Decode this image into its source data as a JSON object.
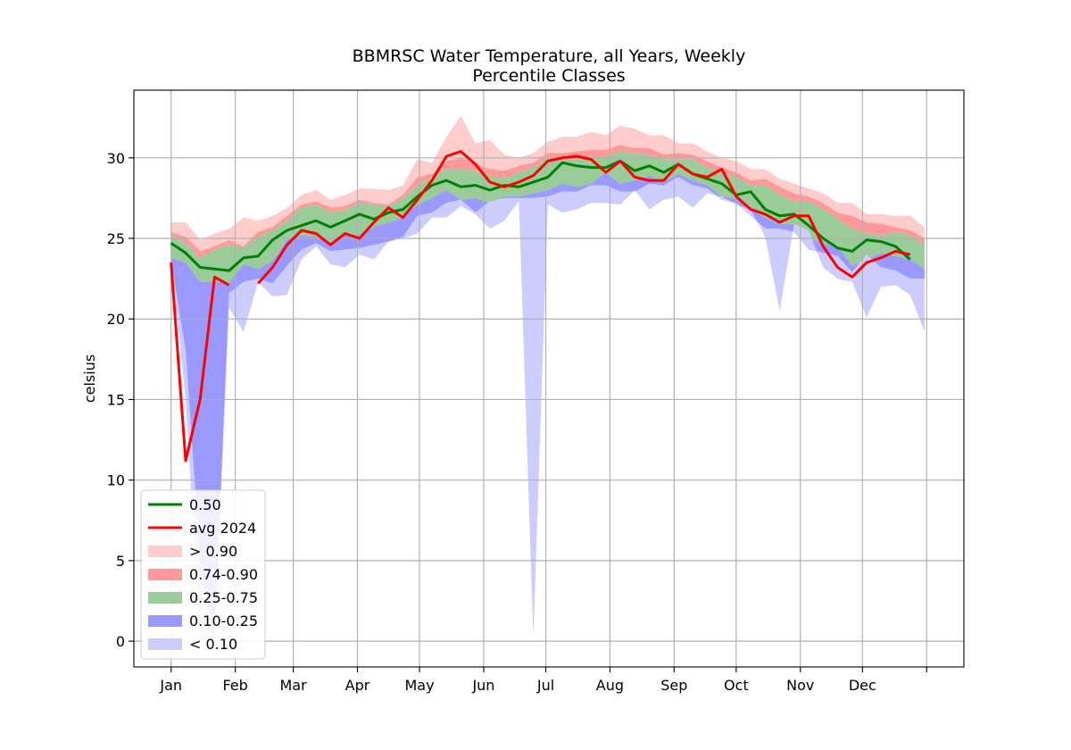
{
  "chart_data": {
    "type": "area",
    "title_line1": "BBMRSC Water Temperature, all Years, Weekly",
    "title_line2": "Percentile Classes",
    "xlabel": "",
    "ylabel": "celsius",
    "x_start": 1,
    "x_step": 7,
    "x_ticks": [
      {
        "day": 1,
        "label": "Jan"
      },
      {
        "day": 32,
        "label": "Feb"
      },
      {
        "day": 60,
        "label": "Mar"
      },
      {
        "day": 91,
        "label": "Apr"
      },
      {
        "day": 121,
        "label": "May"
      },
      {
        "day": 152,
        "label": "Jun"
      },
      {
        "day": 182,
        "label": "Jul"
      },
      {
        "day": 213,
        "label": "Aug"
      },
      {
        "day": 244,
        "label": "Sep"
      },
      {
        "day": 274,
        "label": "Oct"
      },
      {
        "day": 305,
        "label": "Nov"
      },
      {
        "day": 335,
        "label": "Dec"
      },
      {
        "day": 366,
        "label": ""
      }
    ],
    "xlim": [
      -17,
      384
    ],
    "ylim": [
      -1.6,
      34.2
    ],
    "y_ticks": [
      0,
      5,
      10,
      15,
      20,
      25,
      30
    ],
    "grid": true,
    "legend_position": "bottom-left",
    "colors": {
      "p50": "#008000",
      "avg2024": "#ff0000",
      "gt90": "#ffcccc",
      "p74_90": "#ff9999",
      "p25_75": "#99cc99",
      "p10_25": "#9999ff",
      "lt10": "#ccccff"
    },
    "legend": [
      {
        "key": "p50",
        "label": "0.50",
        "kind": "line"
      },
      {
        "key": "avg2024",
        "label": "avg 2024",
        "kind": "line"
      },
      {
        "key": "gt90",
        "label": "> 0.90",
        "kind": "patch"
      },
      {
        "key": "p74_90",
        "label": "0.74-0.90",
        "kind": "patch"
      },
      {
        "key": "p25_75",
        "label": "0.25-0.75",
        "kind": "patch"
      },
      {
        "key": "p10_25",
        "label": "0.10-0.25",
        "kind": "patch"
      },
      {
        "key": "lt10",
        "label": "< 0.10",
        "kind": "patch"
      }
    ],
    "series": {
      "max": [
        26.0,
        26.0,
        24.9,
        25.3,
        25.6,
        26.3,
        26.1,
        26.4,
        26.9,
        27.7,
        28.0,
        27.4,
        27.7,
        28.1,
        28.1,
        28.0,
        28.3,
        29.9,
        29.7,
        31.3,
        32.6,
        30.9,
        31.1,
        30.2,
        30.0,
        30.3,
        31.0,
        31.3,
        31.3,
        31.6,
        31.4,
        32.0,
        31.8,
        31.4,
        31.4,
        30.9,
        30.9,
        30.4,
        30.0,
        29.8,
        29.3,
        29.3,
        28.7,
        28.4,
        28.1,
        27.8,
        27.2,
        27.2,
        26.5,
        26.5,
        26.4,
        26.4,
        25.7
      ],
      "p90": [
        25.4,
        25.1,
        24.2,
        24.5,
        24.9,
        24.5,
        25.4,
        25.7,
        26.4,
        27.1,
        27.3,
        26.9,
        27.0,
        27.4,
        27.2,
        27.1,
        27.7,
        28.8,
        29.0,
        29.8,
        30.0,
        29.6,
        29.3,
        29.2,
        29.5,
        29.7,
        30.3,
        30.3,
        30.4,
        30.5,
        30.5,
        30.8,
        30.6,
        30.6,
        30.2,
        30.3,
        30.2,
        29.8,
        29.4,
        29.1,
        28.6,
        28.7,
        28.2,
        27.8,
        27.6,
        27.2,
        26.6,
        26.4,
        26.0,
        25.9,
        25.7,
        25.5,
        25.0
      ],
      "p75": [
        25.2,
        24.7,
        23.8,
        24.3,
        24.6,
        24.4,
        25.1,
        25.5,
        26.1,
        26.9,
        27.1,
        26.6,
        26.8,
        27.2,
        27.1,
        27.0,
        27.5,
        28.3,
        28.8,
        29.3,
        29.3,
        29.2,
        28.9,
        28.7,
        29.1,
        29.4,
        30.0,
        29.9,
        29.9,
        30.1,
        30.1,
        30.4,
        30.3,
        30.2,
        29.9,
        29.9,
        29.9,
        29.4,
        29.0,
        28.8,
        28.3,
        28.3,
        27.7,
        27.3,
        27.3,
        26.8,
        26.2,
        25.6,
        25.3,
        25.2,
        25.4,
        25.2,
        24.6
      ],
      "p25": [
        23.8,
        23.5,
        22.3,
        22.3,
        22.2,
        23.4,
        23.1,
        23.6,
        24.9,
        25.2,
        25.1,
        24.7,
        25.3,
        25.2,
        25.7,
        26.0,
        26.3,
        27.1,
        27.5,
        28.0,
        27.4,
        27.5,
        27.2,
        27.6,
        27.6,
        27.8,
        28.0,
        28.4,
        28.2,
        28.4,
        29.1,
        28.4,
        28.6,
        28.9,
        28.5,
        29.0,
        28.6,
        28.3,
        27.6,
        27.5,
        26.8,
        26.3,
        25.9,
        25.9,
        25.0,
        24.7,
        24.5,
        23.3,
        23.7,
        24.1,
        23.9,
        23.7,
        23.1
      ],
      "p10": [
        23.6,
        18.0,
        5.0,
        0.2,
        21.6,
        22.3,
        22.5,
        22.2,
        23.3,
        24.3,
        24.7,
        24.2,
        24.3,
        24.4,
        24.6,
        24.8,
        25.1,
        26.4,
        26.6,
        27.2,
        27.4,
        26.6,
        27.3,
        27.5,
        27.5,
        27.5,
        27.6,
        27.9,
        27.9,
        28.3,
        28.3,
        27.9,
        27.9,
        28.4,
        28.3,
        28.8,
        28.3,
        28.1,
        27.4,
        27.2,
        26.4,
        25.6,
        25.6,
        25.4,
        24.3,
        24.1,
        23.9,
        22.9,
        24.0,
        23.2,
        23.0,
        22.5,
        22.5
      ],
      "min": [
        23.6,
        15.0,
        0.0,
        0.0,
        20.7,
        19.2,
        22.3,
        21.4,
        21.5,
        23.7,
        24.5,
        23.4,
        23.2,
        24.0,
        23.7,
        24.8,
        25.0,
        25.3,
        26.3,
        26.3,
        27.0,
        26.5,
        25.6,
        26.1,
        27.3,
        0.2,
        27.1,
        26.6,
        26.8,
        27.2,
        27.2,
        27.1,
        28.0,
        26.8,
        27.4,
        27.6,
        26.9,
        27.8,
        27.6,
        27.1,
        26.8,
        25.1,
        20.5,
        25.9,
        25.5,
        23.2,
        22.5,
        22.3,
        20.1,
        22.0,
        22.1,
        21.5,
        19.2
      ],
      "median": [
        24.7,
        24.1,
        23.2,
        23.1,
        23.0,
        23.8,
        23.9,
        24.9,
        25.5,
        25.8,
        26.1,
        25.7,
        26.1,
        26.5,
        26.2,
        26.6,
        26.8,
        27.6,
        28.3,
        28.6,
        28.2,
        28.3,
        28.0,
        28.3,
        28.2,
        28.5,
        28.8,
        29.7,
        29.5,
        29.4,
        29.4,
        29.8,
        29.2,
        29.5,
        29.1,
        29.6,
        29.0,
        28.7,
        28.4,
        27.7,
        27.9,
        26.8,
        26.4,
        26.5,
        25.8,
        25.0,
        24.4,
        24.2,
        24.9,
        24.8,
        24.5,
        23.7,
        null
      ],
      "avg2024": [
        23.5,
        11.2,
        15.0,
        22.6,
        22.1,
        null,
        22.2,
        23.2,
        24.6,
        25.5,
        25.3,
        24.6,
        25.3,
        25.0,
        26.0,
        26.9,
        26.3,
        27.4,
        28.6,
        30.1,
        30.4,
        29.6,
        28.5,
        28.2,
        28.5,
        28.9,
        29.8,
        30.0,
        30.1,
        29.9,
        29.1,
        29.8,
        28.8,
        28.6,
        28.6,
        29.6,
        29.0,
        28.8,
        29.3,
        27.6,
        26.8,
        26.5,
        26.0,
        26.4,
        26.4,
        24.5,
        23.2,
        22.6,
        23.5,
        23.8,
        24.2,
        24.0,
        null
      ]
    }
  }
}
